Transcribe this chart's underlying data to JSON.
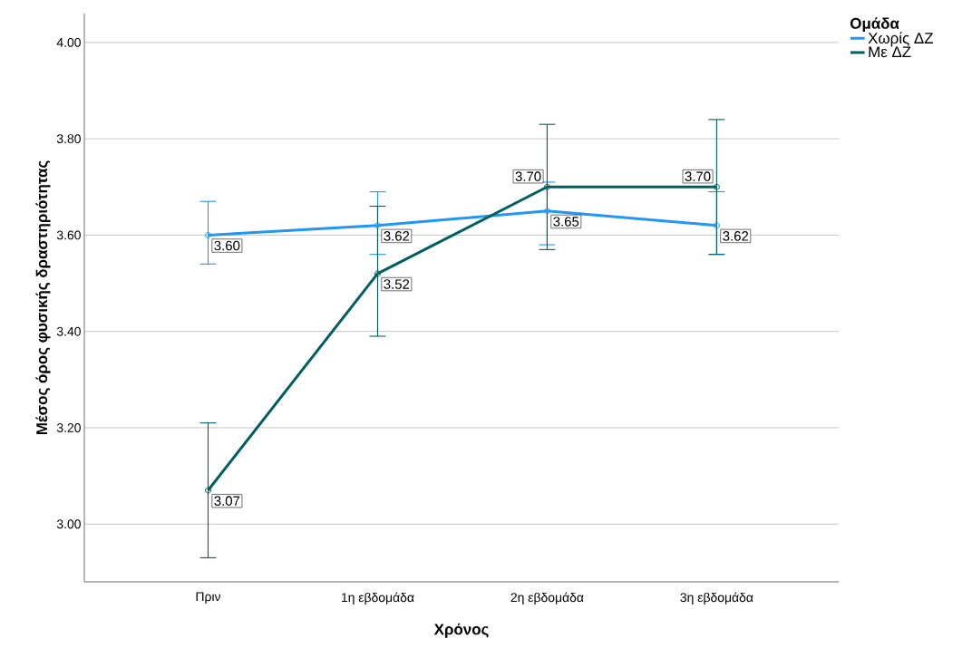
{
  "chart_data": {
    "type": "line",
    "xlabel": "Χρόνος",
    "ylabel": "Μέσος όρος φυσικής δραστηριότητας",
    "legend_title": "Ομάδα",
    "categories": [
      "Πριν",
      "1η εβδομάδα",
      "2η εβδομάδα",
      "3η εβδομάδα"
    ],
    "series": [
      {
        "name": "Χωρίς ΔΖ",
        "color": "#2196f3",
        "values": [
          3.6,
          3.62,
          3.65,
          3.62
        ],
        "value_labels": [
          "3.60",
          "3.62",
          "3.65",
          "3.62"
        ],
        "errors": [
          [
            3.54,
            3.67
          ],
          [
            3.56,
            3.69
          ],
          [
            3.58,
            3.71
          ],
          [
            3.56,
            3.69
          ]
        ]
      },
      {
        "name": "Με ΔΖ",
        "color": "#005e5e",
        "values": [
          3.07,
          3.52,
          3.7,
          3.7
        ],
        "value_labels": [
          "3.07",
          "3.52",
          "3.70",
          "3.70"
        ],
        "errors": [
          [
            2.93,
            3.21
          ],
          [
            3.39,
            3.66
          ],
          [
            3.57,
            3.83
          ],
          [
            3.56,
            3.84
          ]
        ]
      }
    ],
    "ylim": [
      2.88,
      4.06
    ],
    "yticks": [
      {
        "value": 3.0,
        "label": "3.00"
      },
      {
        "value": 3.2,
        "label": "3.20"
      },
      {
        "value": 3.4,
        "label": "3.40"
      },
      {
        "value": 3.6,
        "label": "3.60"
      },
      {
        "value": 3.8,
        "label": "3.80"
      },
      {
        "value": 4.0,
        "label": "4.00"
      }
    ],
    "grid": "y",
    "legend": "top right",
    "marker": "circle",
    "line_style": "solid"
  }
}
